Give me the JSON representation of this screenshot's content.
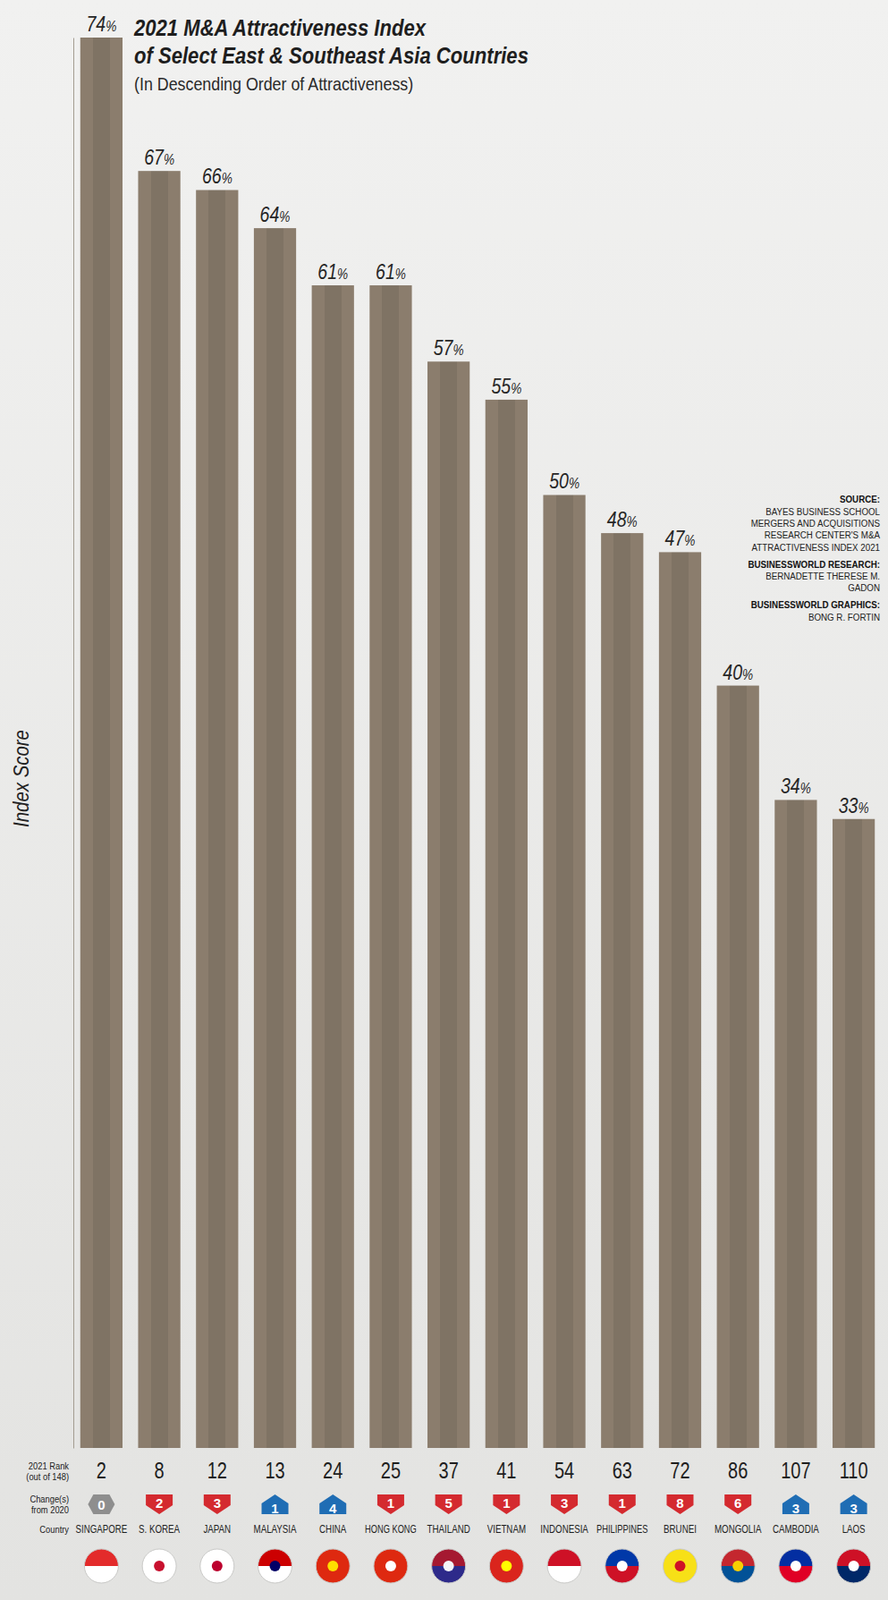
{
  "chart_data": {
    "type": "bar",
    "title": "2021 M&A Attractiveness Index of Select East & Southeast Asia Countries",
    "subtitle": "(In Descending Order of Attractiveness)",
    "y_label": "Index Score",
    "categories": [
      "SINGAPORE",
      "S. KOREA",
      "JAPAN",
      "MALAYSIA",
      "CHINA",
      "HONG KONG",
      "THAILAND",
      "VIETNAM",
      "INDONESIA",
      "PHILIPPINES",
      "BRUNEI",
      "MONGOLIA",
      "CAMBODIA",
      "LAOS"
    ],
    "values": [
      74,
      67,
      66,
      64,
      61,
      61,
      57,
      55,
      50,
      48,
      47,
      40,
      34,
      33
    ],
    "value_labels": [
      "74%",
      "67%",
      "66%",
      "64%",
      "61%",
      "61%",
      "57%",
      "55%",
      "50%",
      "48%",
      "47%",
      "40%",
      "34%",
      "33%"
    ],
    "data_labels": true,
    "color": "#857868",
    "ylim": [
      0,
      74
    ],
    "tick_labels": "x",
    "grid": false,
    "rank_label": "2021 Rank (out of 148)",
    "ranks": [
      2,
      8,
      12,
      13,
      24,
      25,
      37,
      41,
      54,
      63,
      72,
      86,
      107,
      110
    ],
    "change_label": "Change(s) from 2020",
    "changes": [
      0,
      -2,
      -3,
      1,
      4,
      -1,
      -5,
      -1,
      -3,
      -1,
      -8,
      -6,
      3,
      3
    ],
    "change_labels": [
      "0",
      "2",
      "3",
      "1",
      "4",
      "1",
      "5",
      "1",
      "3",
      "1",
      "8",
      "6",
      "3",
      "3"
    ],
    "category_label": "Country",
    "annotations": [
      {
        "label": "SOURCE:",
        "text": "BAYES BUSINESS SCHOOL MERGERS AND ACQUISITIONS RESEARCH CENTER'S M&A ATTRACTIVENESS INDEX 2021"
      },
      {
        "label": "BUSINESSWORLD RESEARCH:",
        "text": "BERNADETTE THERESE M. GADON"
      },
      {
        "label": "BUSINESSWORLD GRAPHICS:",
        "text": "BONG R. FORTIN"
      }
    ]
  }
}
